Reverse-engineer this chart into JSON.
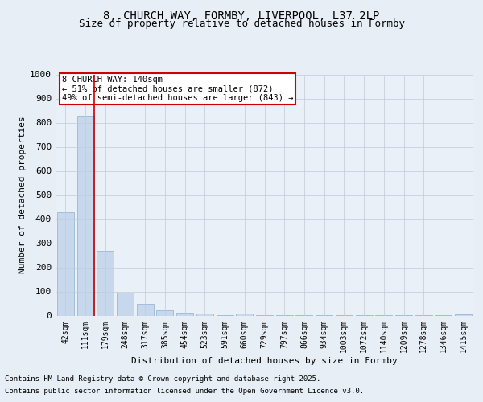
{
  "title_line1": "8, CHURCH WAY, FORMBY, LIVERPOOL, L37 2LP",
  "title_line2": "Size of property relative to detached houses in Formby",
  "xlabel": "Distribution of detached houses by size in Formby",
  "ylabel": "Number of detached properties",
  "categories": [
    "42sqm",
    "111sqm",
    "179sqm",
    "248sqm",
    "317sqm",
    "385sqm",
    "454sqm",
    "523sqm",
    "591sqm",
    "660sqm",
    "729sqm",
    "797sqm",
    "866sqm",
    "934sqm",
    "1003sqm",
    "1072sqm",
    "1140sqm",
    "1209sqm",
    "1278sqm",
    "1346sqm",
    "1415sqm"
  ],
  "values": [
    430,
    830,
    270,
    95,
    47,
    22,
    13,
    9,
    1,
    9,
    1,
    1,
    1,
    1,
    1,
    1,
    1,
    1,
    1,
    1,
    6
  ],
  "bar_color": "#c8d8ec",
  "bar_edge_color": "#89aed0",
  "vline_color": "#cc0000",
  "vline_x": 1.45,
  "annotation_text": "8 CHURCH WAY: 140sqm\n← 51% of detached houses are smaller (872)\n49% of semi-detached houses are larger (843) →",
  "annotation_box_color": "#cc0000",
  "ylim": [
    0,
    1000
  ],
  "yticks": [
    0,
    100,
    200,
    300,
    400,
    500,
    600,
    700,
    800,
    900,
    1000
  ],
  "background_color": "#e8eef5",
  "plot_background": "#eaf0f8",
  "grid_color": "#c0ccd8",
  "footer_line1": "Contains HM Land Registry data © Crown copyright and database right 2025.",
  "footer_line2": "Contains public sector information licensed under the Open Government Licence v3.0.",
  "title_fontsize": 10,
  "subtitle_fontsize": 9,
  "axis_label_fontsize": 8,
  "tick_fontsize": 7,
  "annotation_fontsize": 7.5,
  "footer_fontsize": 6.5
}
